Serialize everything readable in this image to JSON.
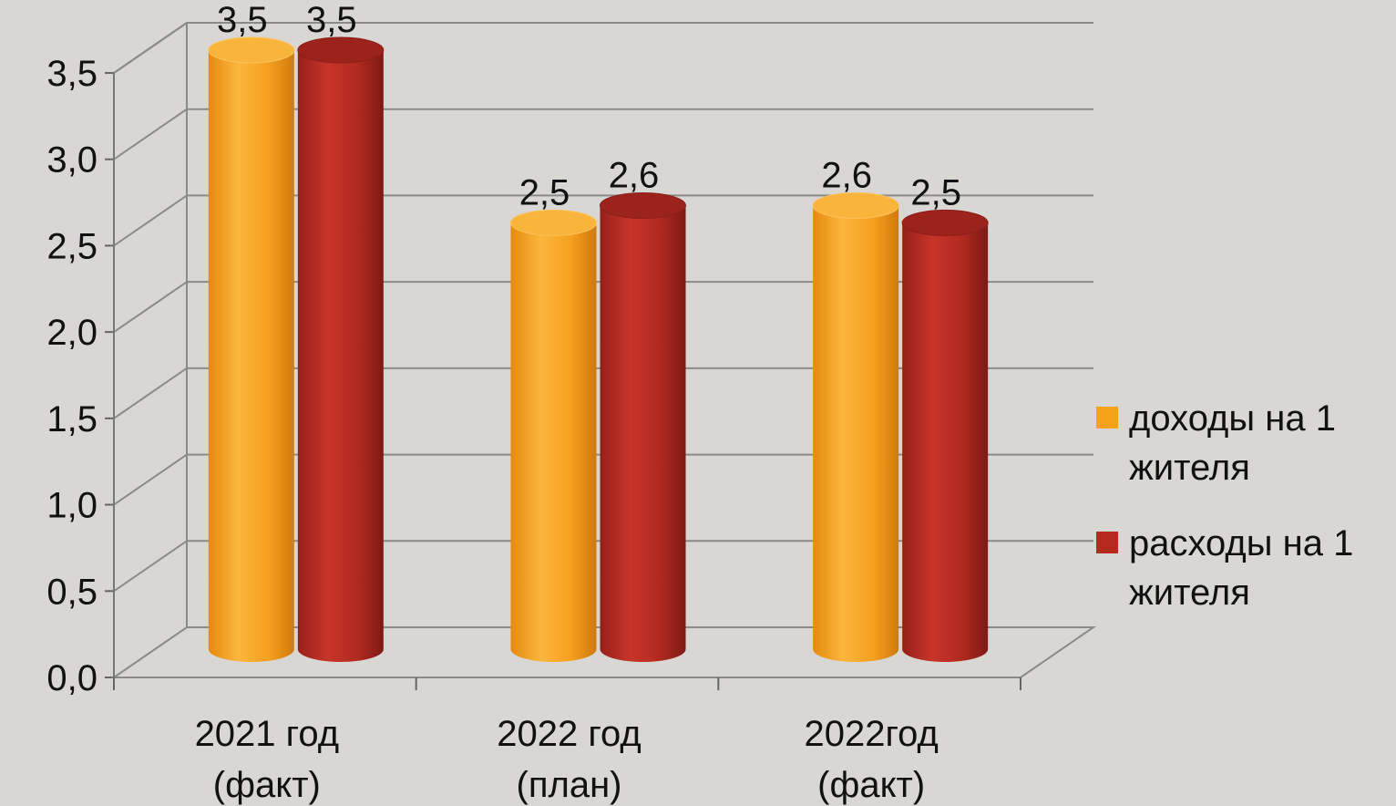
{
  "chart_data": {
    "type": "bar",
    "categories": [
      [
        "2021 год",
        "(факт)"
      ],
      [
        "2022 год",
        "(план)"
      ],
      [
        "2022год",
        "(факт)"
      ]
    ],
    "series": [
      {
        "name": "доходы на 1 жителя",
        "legend_lines": [
          "доходы на 1",
          "жителя"
        ],
        "color": "#f7a21b",
        "values": [
          3.5,
          2.5,
          2.6
        ]
      },
      {
        "name": "расходы на 1 жителя",
        "legend_lines": [
          "расходы на 1",
          "жителя"
        ],
        "color": "#b52a1f",
        "values": [
          3.5,
          2.6,
          2.5
        ]
      }
    ],
    "value_labels": [
      [
        "3,5",
        "2,5",
        "2,6"
      ],
      [
        "3,5",
        "2,6",
        "2,5"
      ]
    ],
    "yticks": [
      "0,0",
      "0,5",
      "1,0",
      "1,5",
      "2,0",
      "2,5",
      "3,0",
      "3,5"
    ],
    "ylim": [
      0,
      3.5
    ],
    "grid": true,
    "legend_position": "right",
    "title": "",
    "xlabel": "",
    "ylabel": ""
  }
}
